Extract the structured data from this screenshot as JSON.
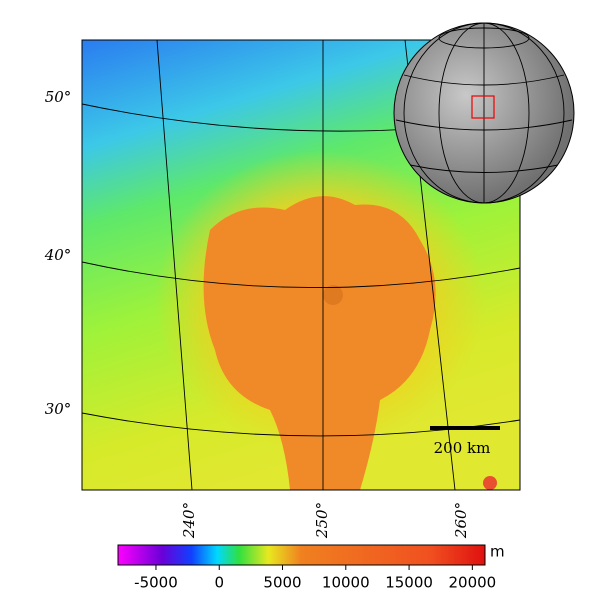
{
  "map": {
    "lat_labels": [
      "50°",
      "40°",
      "30°"
    ],
    "lon_labels": [
      "240°",
      "250°",
      "260°"
    ],
    "scale_bar": "200 km"
  },
  "colorbar": {
    "unit": "m",
    "lim": [
      -8000,
      21000
    ],
    "ticks": [
      -5000,
      0,
      5000,
      10000,
      15000,
      20000
    ]
  }
}
